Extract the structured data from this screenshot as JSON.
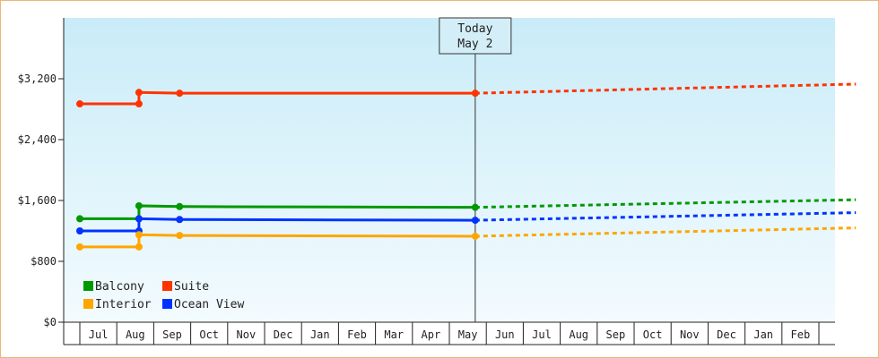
{
  "chart_data": {
    "type": "line",
    "ylim": [
      0,
      4000
    ],
    "y_ticks": [
      "$0",
      "$800",
      "$1,600",
      "$2,400",
      "$3,200"
    ],
    "y_tick_values": [
      0,
      800,
      1600,
      2400,
      3200
    ],
    "months": [
      "",
      "Jul",
      "Aug",
      "Sep",
      "Oct",
      "Nov",
      "Dec",
      "Jan",
      "Feb",
      "Mar",
      "Apr",
      "May",
      "Jun",
      "Jul",
      "Aug",
      "Sep",
      "Oct",
      "Nov",
      "Dec",
      "Jan",
      "Feb",
      ""
    ],
    "today": {
      "line1": "Today",
      "line2": "May 2"
    },
    "legend": [
      {
        "key": "balcony",
        "label": "Balcony"
      },
      {
        "key": "suite",
        "label": "Suite"
      },
      {
        "key": "interior",
        "label": "Interior"
      },
      {
        "key": "ocean",
        "label": "Ocean View"
      }
    ],
    "series": [
      {
        "key": "suite",
        "name": "Suite",
        "color": "#ff3300",
        "history": [
          [
            0,
            2870
          ],
          [
            1.6,
            2870
          ],
          [
            1.6,
            3020
          ],
          [
            2.7,
            3010
          ],
          [
            10.7,
            3010
          ]
        ],
        "markers": [
          [
            0,
            2870
          ],
          [
            1.6,
            2870
          ],
          [
            1.6,
            3020
          ],
          [
            2.7,
            3010
          ],
          [
            10.7,
            3010
          ]
        ],
        "forecast": [
          [
            10.7,
            3010
          ],
          [
            21,
            3130
          ]
        ]
      },
      {
        "key": "balcony",
        "name": "Balcony",
        "color": "#009900",
        "history": [
          [
            0,
            1360
          ],
          [
            1.6,
            1360
          ],
          [
            1.6,
            1530
          ],
          [
            2.7,
            1520
          ],
          [
            10.7,
            1510
          ]
        ],
        "markers": [
          [
            0,
            1360
          ],
          [
            1.6,
            1360
          ],
          [
            1.6,
            1530
          ],
          [
            2.7,
            1520
          ],
          [
            10.7,
            1510
          ]
        ],
        "forecast": [
          [
            10.7,
            1510
          ],
          [
            21,
            1610
          ]
        ]
      },
      {
        "key": "ocean",
        "name": "Ocean View",
        "color": "#0033ff",
        "history": [
          [
            0,
            1200
          ],
          [
            1.6,
            1200
          ],
          [
            1.6,
            1360
          ],
          [
            2.7,
            1350
          ],
          [
            10.7,
            1340
          ]
        ],
        "markers": [
          [
            0,
            1200
          ],
          [
            1.6,
            1200
          ],
          [
            1.6,
            1360
          ],
          [
            2.7,
            1350
          ],
          [
            10.7,
            1340
          ]
        ],
        "forecast": [
          [
            10.7,
            1340
          ],
          [
            21,
            1440
          ]
        ]
      },
      {
        "key": "interior",
        "name": "Interior",
        "color": "#ffa500",
        "history": [
          [
            0,
            990
          ],
          [
            1.6,
            990
          ],
          [
            1.6,
            1150
          ],
          [
            2.7,
            1140
          ],
          [
            10.7,
            1130
          ]
        ],
        "markers": [
          [
            0,
            990
          ],
          [
            1.6,
            990
          ],
          [
            1.6,
            1150
          ],
          [
            2.7,
            1140
          ],
          [
            10.7,
            1130
          ]
        ],
        "forecast": [
          [
            10.7,
            1130
          ],
          [
            21,
            1240
          ]
        ]
      }
    ]
  }
}
